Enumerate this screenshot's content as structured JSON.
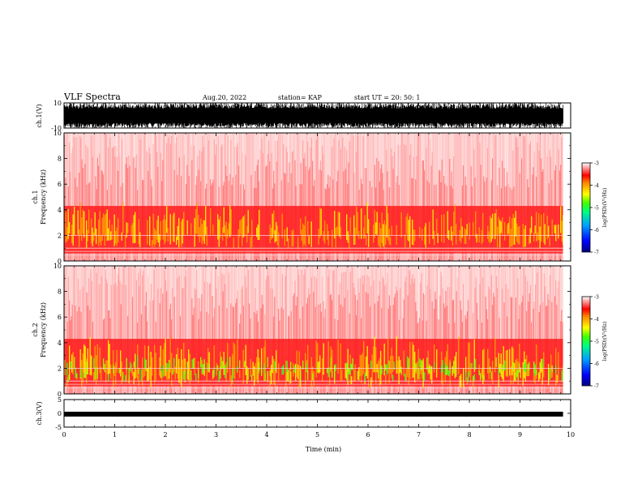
{
  "header": {
    "title": "VLF Spectra",
    "date": "Aug.20, 2022",
    "station": "station= KAP",
    "start": "start  UT  =   20: 50: 1"
  },
  "panels": {
    "ch1_wave_label": "ch.1(V)",
    "ch1_spec_label_line1": "ch.1",
    "ch1_spec_label_line2": "Frequency  (kHz)",
    "ch2_spec_label_line1": "ch.2",
    "ch2_spec_label_line2": "Frequency  (kHz)",
    "ch3_wave_label": "ch.3(V)",
    "colorbar_label": "log(PSD)(V²/Hz)"
  },
  "chart_data": [
    {
      "type": "line",
      "name": "ch1-waveform",
      "ylabel": "ch.1(V)",
      "ylim": [
        -10,
        10
      ],
      "yticks": [
        "10",
        "-10"
      ],
      "xlim": [
        0,
        10
      ],
      "description_values": {
        "x_end_min": 9.85,
        "amplitude_min": -10,
        "amplitude_max": 10
      }
    },
    {
      "type": "heatmap",
      "name": "ch1-spectrogram",
      "ylabel": "Frequency  (kHz)",
      "ylim": [
        0,
        10
      ],
      "yticks": [
        "0",
        "2",
        "4",
        "6",
        "8",
        "10"
      ],
      "xlim": [
        0,
        10
      ],
      "data_end_min": 9.85,
      "intense_band_khz": [
        1.0,
        3.5
      ],
      "colorbar": {
        "range": [
          -7,
          -3
        ],
        "ticks": [
          "-3",
          "-4",
          "-5",
          "-6",
          "-7"
        ]
      }
    },
    {
      "type": "heatmap",
      "name": "ch2-spectrogram",
      "ylabel": "Frequency  (kHz)",
      "ylim": [
        0,
        10
      ],
      "yticks": [
        "0",
        "2",
        "4",
        "6",
        "8",
        "10"
      ],
      "xlim": [
        0,
        10
      ],
      "data_end_min": 9.85,
      "intense_band_khz": [
        0.5,
        3.5
      ],
      "colorbar": {
        "range": [
          -7,
          -3
        ],
        "ticks": [
          "-3",
          "-4",
          "-5",
          "-6",
          "-7"
        ]
      }
    },
    {
      "type": "line",
      "name": "ch3-waveform",
      "ylabel": "ch.3(V)",
      "ylim": [
        -5,
        5
      ],
      "yticks": [
        "5",
        "0",
        "-5"
      ],
      "xlim": [
        0,
        10
      ],
      "description_values": {
        "level_v": -0.3,
        "x_end_min": 9.85
      }
    }
  ],
  "xaxis": {
    "label": "Time  (min)",
    "ticks": [
      "0",
      "1",
      "2",
      "3",
      "4",
      "5",
      "6",
      "7",
      "8",
      "9",
      "10"
    ]
  },
  "colors": {
    "spec_low": "#ff0000",
    "spec_mid": "#ffff00",
    "spec_high": "#00ff00",
    "axis": "#000000"
  }
}
